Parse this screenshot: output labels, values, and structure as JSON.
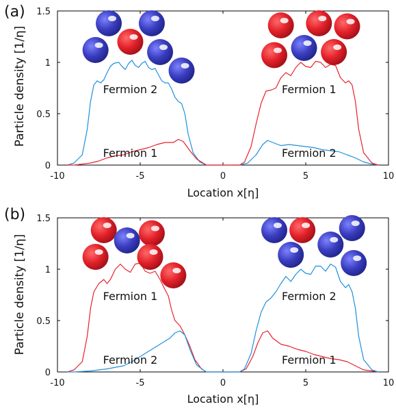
{
  "colors": {
    "blue_line": "#1e8fdc",
    "red_line": "#e8202a",
    "blue_ball": "#3a3ec0",
    "red_ball": "#e3212a"
  },
  "chart_data": [
    {
      "type": "line",
      "panel_label": "(a)",
      "xlabel": "Location x[η]",
      "ylabel": "Particle density [1/η]",
      "xlim": [
        -10,
        10
      ],
      "ylim": [
        0,
        1.5
      ],
      "xticks": [
        "-10",
        "-5",
        "0",
        "5",
        "10"
      ],
      "yticks": [
        "0",
        "0.5",
        "1",
        "1.5"
      ],
      "grid": false,
      "series": [
        {
          "color": "blue",
          "points": [
            [
              -9.4,
              0
            ],
            [
              -9,
              0.02
            ],
            [
              -8.5,
              0.1
            ],
            [
              -8.2,
              0.35
            ],
            [
              -8,
              0.62
            ],
            [
              -7.8,
              0.78
            ],
            [
              -7.6,
              0.82
            ],
            [
              -7.4,
              0.8
            ],
            [
              -7.2,
              0.83
            ],
            [
              -7,
              0.9
            ],
            [
              -6.8,
              0.96
            ],
            [
              -6.6,
              0.99
            ],
            [
              -6.3,
              1.0
            ],
            [
              -6.1,
              0.96
            ],
            [
              -5.9,
              0.93
            ],
            [
              -5.7,
              0.99
            ],
            [
              -5.5,
              1.02
            ],
            [
              -5.3,
              0.97
            ],
            [
              -5.1,
              0.95
            ],
            [
              -4.9,
              0.99
            ],
            [
              -4.7,
              1.01
            ],
            [
              -4.5,
              0.95
            ],
            [
              -4.3,
              0.93
            ],
            [
              -4.1,
              0.94
            ],
            [
              -3.9,
              0.88
            ],
            [
              -3.7,
              0.82
            ],
            [
              -3.5,
              0.8
            ],
            [
              -3.3,
              0.8
            ],
            [
              -3.1,
              0.74
            ],
            [
              -2.9,
              0.66
            ],
            [
              -2.7,
              0.62
            ],
            [
              -2.5,
              0.6
            ],
            [
              -2.3,
              0.5
            ],
            [
              -2.1,
              0.3
            ],
            [
              -1.8,
              0.12
            ],
            [
              -1.4,
              0.03
            ],
            [
              -1,
              0
            ],
            [
              1,
              0
            ],
            [
              1.5,
              0.02
            ],
            [
              2,
              0.1
            ],
            [
              2.4,
              0.2
            ],
            [
              2.7,
              0.24
            ],
            [
              3,
              0.22
            ],
            [
              3.5,
              0.19
            ],
            [
              4,
              0.2
            ],
            [
              4.5,
              0.19
            ],
            [
              5,
              0.18
            ],
            [
              5.5,
              0.17
            ],
            [
              6,
              0.15
            ],
            [
              6.5,
              0.14
            ],
            [
              7,
              0.13
            ],
            [
              7.5,
              0.1
            ],
            [
              8,
              0.07
            ],
            [
              8.5,
              0.03
            ],
            [
              9,
              0.01
            ],
            [
              9.4,
              0
            ]
          ],
          "label_text": "Fermion 2",
          "label_at": [
            -5.6,
            0.7
          ]
        },
        {
          "color": "red",
          "points": [
            [
              -9.4,
              0
            ],
            [
              -9,
              0
            ],
            [
              -8.5,
              0.01
            ],
            [
              -8,
              0.02
            ],
            [
              -7.5,
              0.04
            ],
            [
              -7,
              0.07
            ],
            [
              -6.5,
              0.09
            ],
            [
              -6,
              0.1
            ],
            [
              -5.5,
              0.13
            ],
            [
              -5,
              0.15
            ],
            [
              -4.5,
              0.17
            ],
            [
              -4,
              0.2
            ],
            [
              -3.5,
              0.22
            ],
            [
              -3,
              0.22
            ],
            [
              -2.7,
              0.25
            ],
            [
              -2.4,
              0.23
            ],
            [
              -2,
              0.14
            ],
            [
              -1.6,
              0.06
            ],
            [
              -1.2,
              0.02
            ],
            [
              -1,
              0
            ],
            [
              1,
              0
            ],
            [
              1.3,
              0.03
            ],
            [
              1.7,
              0.18
            ],
            [
              2,
              0.4
            ],
            [
              2.3,
              0.6
            ],
            [
              2.6,
              0.72
            ],
            [
              2.9,
              0.73
            ],
            [
              3.2,
              0.75
            ],
            [
              3.5,
              0.85
            ],
            [
              3.8,
              0.9
            ],
            [
              4.1,
              0.87
            ],
            [
              4.4,
              0.95
            ],
            [
              4.7,
              1.0
            ],
            [
              5,
              0.96
            ],
            [
              5.3,
              0.95
            ],
            [
              5.6,
              1.01
            ],
            [
              5.9,
              1.0
            ],
            [
              6.2,
              0.95
            ],
            [
              6.5,
              0.98
            ],
            [
              6.8,
              0.97
            ],
            [
              7.1,
              0.85
            ],
            [
              7.4,
              0.8
            ],
            [
              7.6,
              0.82
            ],
            [
              7.8,
              0.78
            ],
            [
              8,
              0.62
            ],
            [
              8.2,
              0.35
            ],
            [
              8.5,
              0.12
            ],
            [
              9,
              0.02
            ],
            [
              9.4,
              0
            ]
          ],
          "label_text": "Fermion 1",
          "label_at": [
            5.2,
            0.7
          ]
        }
      ],
      "extra_labels": [
        {
          "text": "Fermion 1",
          "at": [
            -5.6,
            0.08
          ]
        },
        {
          "text": "Fermion 2",
          "at": [
            5.2,
            0.08
          ]
        }
      ],
      "balls": [
        {
          "color": "blue",
          "at": [
            -6.9,
            1.38
          ]
        },
        {
          "color": "blue",
          "at": [
            -4.3,
            1.38
          ]
        },
        {
          "color": "red",
          "at": [
            -5.6,
            1.2
          ]
        },
        {
          "color": "blue",
          "at": [
            -7.7,
            1.12
          ]
        },
        {
          "color": "blue",
          "at": [
            -3.8,
            1.1
          ]
        },
        {
          "color": "blue",
          "at": [
            -2.5,
            0.92
          ]
        },
        {
          "color": "red",
          "at": [
            3.5,
            1.36
          ]
        },
        {
          "color": "red",
          "at": [
            5.8,
            1.38
          ]
        },
        {
          "color": "red",
          "at": [
            7.5,
            1.35
          ]
        },
        {
          "color": "red",
          "at": [
            3.1,
            1.07
          ]
        },
        {
          "color": "blue",
          "at": [
            4.9,
            1.14
          ]
        },
        {
          "color": "red",
          "at": [
            6.7,
            1.1
          ]
        }
      ]
    },
    {
      "type": "line",
      "panel_label": "(b)",
      "xlabel": "Location x[η]",
      "ylabel": "Particle density [1/η]",
      "xlim": [
        -10,
        10
      ],
      "ylim": [
        0,
        1.5
      ],
      "xticks": [
        "-10",
        "-5",
        "0",
        "5",
        "10"
      ],
      "yticks": [
        "0",
        "0.5",
        "1",
        "1.5"
      ],
      "grid": false,
      "series": [
        {
          "color": "red",
          "points": [
            [
              -9.4,
              0
            ],
            [
              -9,
              0.02
            ],
            [
              -8.5,
              0.1
            ],
            [
              -8.2,
              0.35
            ],
            [
              -8,
              0.62
            ],
            [
              -7.8,
              0.78
            ],
            [
              -7.5,
              0.86
            ],
            [
              -7.2,
              0.9
            ],
            [
              -7,
              0.86
            ],
            [
              -6.8,
              0.9
            ],
            [
              -6.5,
              1.0
            ],
            [
              -6.2,
              1.05
            ],
            [
              -5.9,
              1.0
            ],
            [
              -5.6,
              0.97
            ],
            [
              -5.3,
              1.05
            ],
            [
              -5.0,
              1.06
            ],
            [
              -4.7,
              0.98
            ],
            [
              -4.4,
              0.96
            ],
            [
              -4.1,
              0.98
            ],
            [
              -3.8,
              0.9
            ],
            [
              -3.5,
              0.8
            ],
            [
              -3.3,
              0.74
            ],
            [
              -3.1,
              0.6
            ],
            [
              -2.9,
              0.5
            ],
            [
              -2.6,
              0.45
            ],
            [
              -2.3,
              0.36
            ],
            [
              -2,
              0.25
            ],
            [
              -1.7,
              0.12
            ],
            [
              -1.3,
              0.03
            ],
            [
              -1,
              0
            ],
            [
              1,
              0
            ],
            [
              1.4,
              0.03
            ],
            [
              1.8,
              0.15
            ],
            [
              2.1,
              0.28
            ],
            [
              2.4,
              0.38
            ],
            [
              2.7,
              0.4
            ],
            [
              3,
              0.33
            ],
            [
              3.5,
              0.27
            ],
            [
              4,
              0.25
            ],
            [
              4.5,
              0.22
            ],
            [
              5,
              0.2
            ],
            [
              5.5,
              0.17
            ],
            [
              6,
              0.15
            ],
            [
              6.5,
              0.13
            ],
            [
              7,
              0.12
            ],
            [
              7.5,
              0.1
            ],
            [
              8,
              0.06
            ],
            [
              8.5,
              0.02
            ],
            [
              9,
              0.01
            ],
            [
              9.4,
              0
            ]
          ],
          "label_text": "Fermion 1",
          "label_at": [
            -5.6,
            0.7
          ]
        },
        {
          "color": "blue",
          "points": [
            [
              -9.4,
              0
            ],
            [
              -9,
              0
            ],
            [
              -8,
              0.01
            ],
            [
              -7,
              0.03
            ],
            [
              -6,
              0.06
            ],
            [
              -5.5,
              0.1
            ],
            [
              -5,
              0.15
            ],
            [
              -4.5,
              0.2
            ],
            [
              -4,
              0.25
            ],
            [
              -3.5,
              0.3
            ],
            [
              -3.2,
              0.33
            ],
            [
              -2.9,
              0.38
            ],
            [
              -2.6,
              0.4
            ],
            [
              -2.3,
              0.36
            ],
            [
              -2,
              0.22
            ],
            [
              -1.6,
              0.07
            ],
            [
              -1.2,
              0.02
            ],
            [
              -1,
              0
            ],
            [
              1,
              0
            ],
            [
              1.3,
              0.03
            ],
            [
              1.7,
              0.18
            ],
            [
              2,
              0.4
            ],
            [
              2.3,
              0.58
            ],
            [
              2.6,
              0.68
            ],
            [
              2.9,
              0.72
            ],
            [
              3.2,
              0.78
            ],
            [
              3.5,
              0.86
            ],
            [
              3.8,
              0.93
            ],
            [
              4.1,
              0.88
            ],
            [
              4.4,
              0.95
            ],
            [
              4.7,
              1.0
            ],
            [
              5,
              0.96
            ],
            [
              5.3,
              0.95
            ],
            [
              5.6,
              1.03
            ],
            [
              5.9,
              1.03
            ],
            [
              6.2,
              0.98
            ],
            [
              6.5,
              1.05
            ],
            [
              6.8,
              1.02
            ],
            [
              7.1,
              0.88
            ],
            [
              7.4,
              0.82
            ],
            [
              7.6,
              0.85
            ],
            [
              7.8,
              0.78
            ],
            [
              8,
              0.62
            ],
            [
              8.2,
              0.35
            ],
            [
              8.5,
              0.12
            ],
            [
              9,
              0.02
            ],
            [
              9.4,
              0
            ]
          ],
          "label_text": "Fermion 2",
          "label_at": [
            5.2,
            0.7
          ]
        }
      ],
      "extra_labels": [
        {
          "text": "Fermion 2",
          "at": [
            -5.6,
            0.08
          ]
        },
        {
          "text": "Fermion 1",
          "at": [
            5.2,
            0.08
          ]
        }
      ],
      "balls": [
        {
          "color": "red",
          "at": [
            -7.2,
            1.38
          ]
        },
        {
          "color": "red",
          "at": [
            -4.3,
            1.35
          ]
        },
        {
          "color": "blue",
          "at": [
            -5.8,
            1.28
          ]
        },
        {
          "color": "red",
          "at": [
            -7.7,
            1.12
          ]
        },
        {
          "color": "red",
          "at": [
            -4.4,
            1.12
          ]
        },
        {
          "color": "red",
          "at": [
            -3.0,
            0.94
          ]
        },
        {
          "color": "blue",
          "at": [
            3.1,
            1.38
          ]
        },
        {
          "color": "red",
          "at": [
            4.8,
            1.38
          ]
        },
        {
          "color": "blue",
          "at": [
            7.8,
            1.4
          ]
        },
        {
          "color": "blue",
          "at": [
            4.1,
            1.14
          ]
        },
        {
          "color": "blue",
          "at": [
            6.5,
            1.24
          ]
        },
        {
          "color": "blue",
          "at": [
            7.9,
            1.06
          ]
        }
      ]
    }
  ]
}
